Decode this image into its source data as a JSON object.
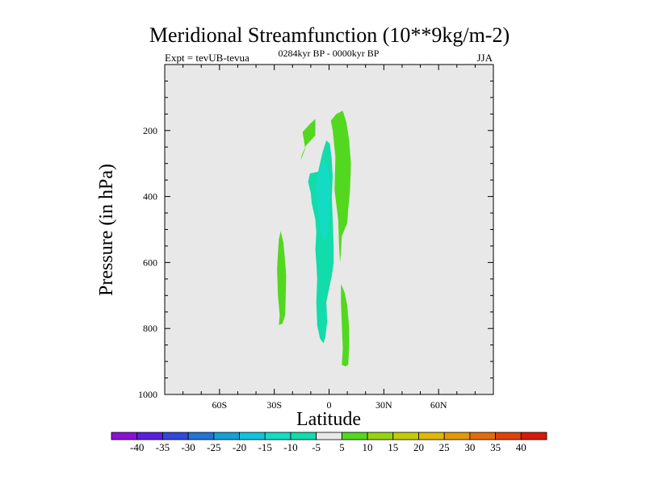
{
  "chart_data": {
    "type": "contour",
    "title": "Meridional Streamfunction (10**9kg/m-2)",
    "left_label": "Expt = tevUB-tevua",
    "center_label": "0284kyr BP - 0000kyr BP",
    "right_label": "JJA",
    "xlabel": "Latitude",
    "ylabel": "Pressure (in hPa)",
    "xlim": [
      -90,
      90
    ],
    "ylim": [
      1000,
      0
    ],
    "x_ticks": [
      {
        "value": -60,
        "label": "60S"
      },
      {
        "value": -30,
        "label": "30S"
      },
      {
        "value": 0,
        "label": "0"
      },
      {
        "value": 30,
        "label": "30N"
      },
      {
        "value": 60,
        "label": "60N"
      }
    ],
    "y_ticks": [
      {
        "value": 200,
        "label": "200"
      },
      {
        "value": 400,
        "label": "400"
      },
      {
        "value": 600,
        "label": "600"
      },
      {
        "value": 800,
        "label": "800"
      },
      {
        "value": 1000,
        "label": "1000"
      }
    ],
    "background_color": "#e8e8e8",
    "colorbar": {
      "labels": [
        "-40",
        "-35",
        "-30",
        "-25",
        "-20",
        "-15",
        "-10",
        "-5",
        "5",
        "10",
        "15",
        "20",
        "25",
        "30",
        "35",
        "40"
      ],
      "colors": [
        "#8c10d8",
        "#5a1ee0",
        "#3348dc",
        "#1f76d6",
        "#14a0d8",
        "#10c4dc",
        "#14dcc4",
        "#12dcaa",
        "#e8e8e8",
        "#52d81e",
        "#96d412",
        "#c4cc0a",
        "#e0b80a",
        "#e4980a",
        "#e26c0a",
        "#de440a",
        "#d81a0a"
      ]
    },
    "regions": [
      {
        "value": 7.5,
        "color": "#52d81e",
        "points": [
          [
            -15.5,
            290
          ],
          [
            -13,
            255
          ],
          [
            -14.5,
            205
          ],
          [
            -10.5,
            180
          ],
          [
            -7.5,
            165
          ],
          [
            -7.5,
            215
          ],
          [
            -12.5,
            245
          ],
          [
            -15,
            275
          ]
        ]
      },
      {
        "value": 7.5,
        "color": "#52d81e",
        "points": [
          [
            1,
            170
          ],
          [
            4,
            150
          ],
          [
            7.5,
            140
          ],
          [
            9.5,
            175
          ],
          [
            11,
            230
          ],
          [
            12,
            300
          ],
          [
            11.5,
            380
          ],
          [
            10.5,
            440
          ],
          [
            10,
            480
          ],
          [
            8.5,
            500
          ],
          [
            7,
            520
          ],
          [
            6.5,
            570
          ],
          [
            6,
            600
          ],
          [
            5.5,
            550
          ],
          [
            5,
            470
          ],
          [
            3,
            380
          ],
          [
            3.5,
            280
          ],
          [
            2,
            200
          ]
        ]
      },
      {
        "value": 7.5,
        "color": "#52d81e",
        "points": [
          [
            -27.5,
            530
          ],
          [
            -26.5,
            505
          ],
          [
            -25,
            540
          ],
          [
            -24,
            600
          ],
          [
            -23.5,
            640
          ],
          [
            -24,
            760
          ],
          [
            -25.5,
            785
          ],
          [
            -27.5,
            790
          ],
          [
            -27,
            760
          ],
          [
            -28,
            700
          ],
          [
            -28.5,
            620
          ],
          [
            -28,
            570
          ]
        ]
      },
      {
        "value": 7.5,
        "color": "#52d81e",
        "points": [
          [
            6.5,
            665
          ],
          [
            8.5,
            690
          ],
          [
            10,
            730
          ],
          [
            11,
            800
          ],
          [
            11,
            860
          ],
          [
            10.5,
            910
          ],
          [
            9,
            915
          ],
          [
            7,
            910
          ],
          [
            7.5,
            860
          ],
          [
            7,
            790
          ],
          [
            6.5,
            720
          ]
        ]
      },
      {
        "value": -7.5,
        "color": "#12dcaa",
        "points": [
          [
            -6,
            325
          ],
          [
            -3.5,
            265
          ],
          [
            -1.5,
            230
          ],
          [
            0.5,
            240
          ],
          [
            1.5,
            290
          ],
          [
            2,
            340
          ],
          [
            1.5,
            400
          ],
          [
            2,
            470
          ],
          [
            2.5,
            550
          ],
          [
            2.5,
            600
          ],
          [
            1.5,
            640
          ],
          [
            0,
            680
          ],
          [
            -1.5,
            720
          ],
          [
            -1,
            780
          ],
          [
            -2,
            825
          ],
          [
            -3,
            845
          ],
          [
            -5,
            830
          ],
          [
            -6.5,
            790
          ],
          [
            -7,
            720
          ],
          [
            -6.5,
            650
          ],
          [
            -7,
            600
          ],
          [
            -7.5,
            560
          ],
          [
            -7,
            510
          ],
          [
            -7.5,
            470
          ],
          [
            -9.5,
            420
          ],
          [
            -10,
            390
          ],
          [
            -11.5,
            355
          ],
          [
            -10.5,
            330
          ]
        ]
      },
      {
        "value": -12.5,
        "color": "#14dcc4",
        "points": [
          [
            -7,
            365
          ],
          [
            -5,
            310
          ],
          [
            -3,
            290
          ],
          [
            -1,
            300
          ],
          [
            0.5,
            340
          ],
          [
            0.5,
            410
          ],
          [
            0,
            470
          ],
          [
            -1,
            520
          ],
          [
            -3,
            530
          ],
          [
            -5,
            500
          ],
          [
            -5.5,
            460
          ],
          [
            -6.5,
            420
          ]
        ]
      }
    ]
  }
}
